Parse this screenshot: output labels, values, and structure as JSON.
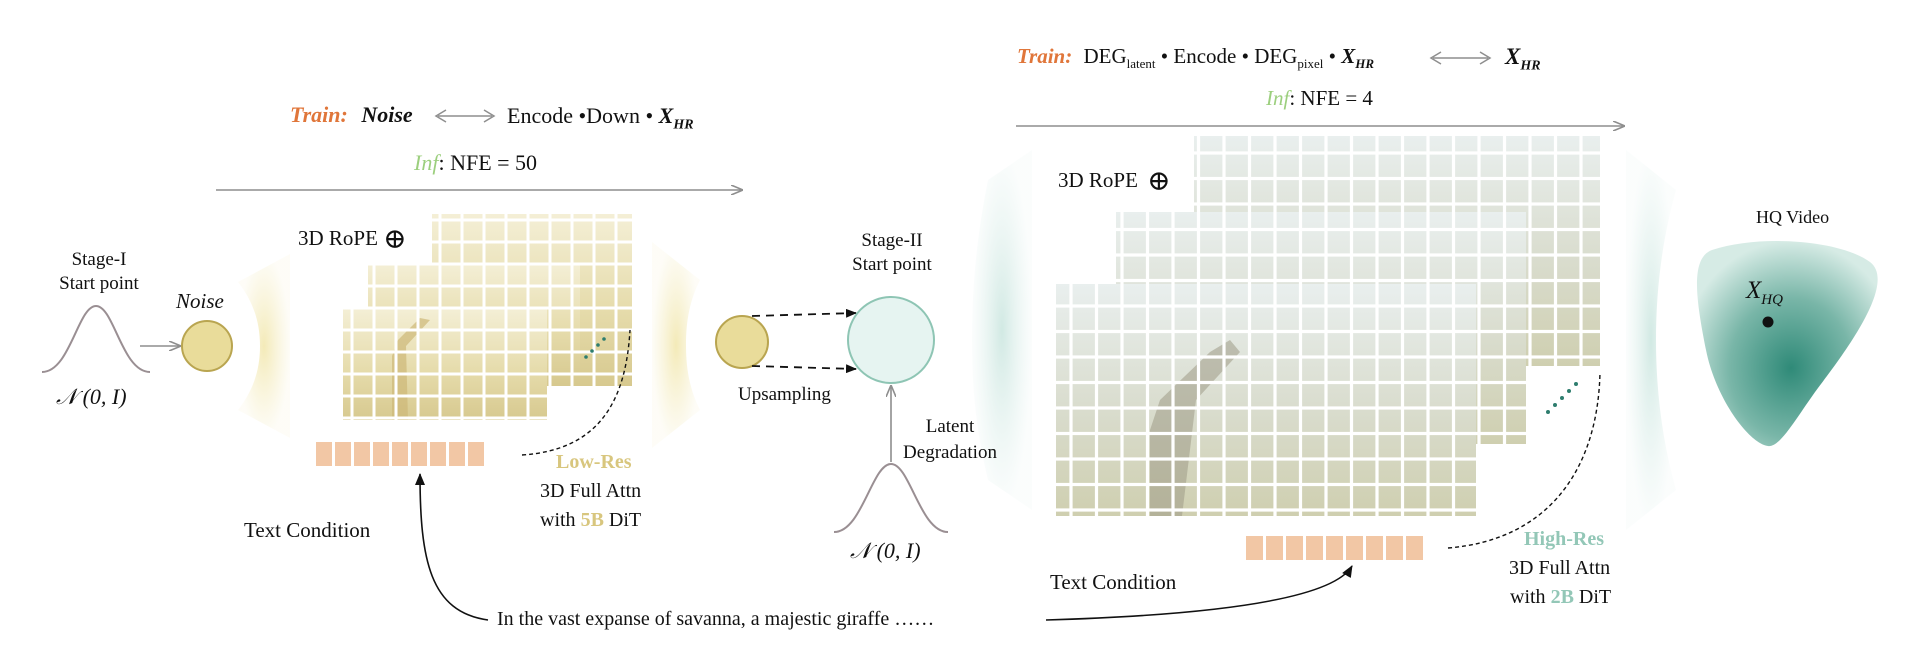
{
  "colors": {
    "train_label": "#e0763a",
    "inf_label": "#9ccf7e",
    "stage1_accent": "#d8c67e",
    "stage2_accent": "#93c7b7",
    "token_fill": "#f2c7a5",
    "noise_circle_fill": "#e9dc9a",
    "noise_circle_stroke": "#b9a550",
    "stage2_circle_fill": "#e6f4f1",
    "stage2_circle_stroke": "#8ec5b4",
    "hq_blob": "#2f8a78",
    "arrow_gray": "#8e8e8e"
  },
  "stage1": {
    "train_label": "Train:",
    "train_noise": "Noise",
    "train_rhs_text": "Encode •Down •",
    "x_symbol": "X",
    "hr_sub": "HR",
    "inf_label": "Inf",
    "inf_text": ": NFE = 50",
    "start_point_line1": "Stage-I",
    "start_point_line2": "Start point",
    "gaussian_label": "𝒩 (0, I)",
    "noise_label": "Noise",
    "rope_label": "3D RoPE",
    "rope_icon": "circled-plus",
    "dit_res": "Low-Res",
    "dit_attn": "3D Full Attn",
    "dit_with": "with ",
    "dit_size": "5B",
    "dit_suffix": " DiT",
    "text_condition": "Text Condition"
  },
  "middle": {
    "start_point_line1": "Stage-II",
    "start_point_line2": "Start point",
    "upsampling": "Upsampling",
    "latent_line1": "Latent",
    "latent_line2": "Degradation",
    "gaussian_label": "𝒩 (0, I)"
  },
  "stage2": {
    "train_label": "Train:",
    "deg": "DEG",
    "latent_sub": "latent",
    "encode": " • Encode • ",
    "pixel_sub": "pixel",
    "dot": " • ",
    "x_symbol": "X",
    "hr_sub": "HR",
    "inf_label": "Inf",
    "inf_text": ": NFE = 4",
    "rope_label": "3D RoPE",
    "rope_icon": "circled-plus",
    "dit_res": "High-Res",
    "dit_attn": "3D Full Attn",
    "dit_with": "with ",
    "dit_size": "2B",
    "dit_suffix": " DiT",
    "text_condition": "Text Condition"
  },
  "output": {
    "title": "HQ Video",
    "x_symbol": "X",
    "hq_sub": "HQ"
  },
  "prompt": "In the vast expanse of savanna, a majestic giraffe ……"
}
